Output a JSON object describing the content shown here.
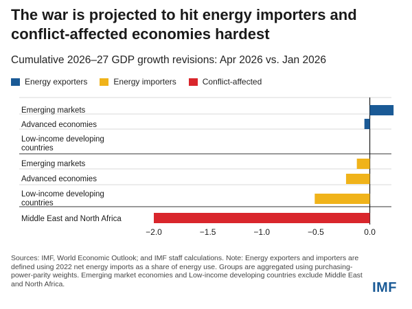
{
  "title": "The war is projected to hit energy importers and conflict-affected economies hardest",
  "subtitle": "Cumulative 2026–27 GDP growth revisions: Apr 2026 vs. Jan 2026",
  "legend": [
    {
      "label": "Energy exporters",
      "color": "#1a5a96"
    },
    {
      "label": "Energy importers",
      "color": "#f0b31a"
    },
    {
      "label": "Conflict-affected",
      "color": "#d9262c"
    }
  ],
  "footnote": "Sources: IMF, World Economic Outlook; and IMF staff calculations. Note: Energy exporters and importers are defined using 2022 net energy imports as a share of energy use. Groups are aggregated using purchasing-power-parity weights. Emerging market economies and Low-income developing countries exclude Middle East and North Africa.",
  "logo": "IMF",
  "chart_data": {
    "type": "bar",
    "orientation": "horizontal",
    "xlim": [
      -2.0,
      0.2
    ],
    "xticks": [
      -2.0,
      -1.5,
      -1.0,
      -0.5,
      0.0
    ],
    "xtick_labels": [
      "−2.0",
      "−1.5",
      "−1.0",
      "−0.5",
      "0.0"
    ],
    "grid": true,
    "bars": [
      {
        "category": "Emerging markets",
        "group": "Energy exporters",
        "value": 0.22,
        "color": "#1a5a96"
      },
      {
        "category": "Advanced economies",
        "group": "Energy exporters",
        "value": -0.05,
        "color": "#1a5a96"
      },
      {
        "category": "Low-income developing countries",
        "group": "Energy exporters",
        "value": 0.0,
        "color": "#1a5a96"
      },
      {
        "category": "Emerging markets",
        "group": "Energy importers",
        "value": -0.12,
        "color": "#f0b31a"
      },
      {
        "category": "Advanced economies",
        "group": "Energy importers",
        "value": -0.22,
        "color": "#f0b31a"
      },
      {
        "category": "Low-income developing countries",
        "group": "Energy importers",
        "value": -0.51,
        "color": "#f0b31a"
      },
      {
        "category": "Middle East and North Africa",
        "group": "Conflict-affected",
        "value": -2.0,
        "color": "#d9262c"
      }
    ]
  }
}
